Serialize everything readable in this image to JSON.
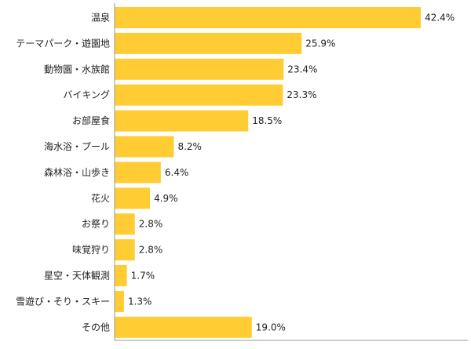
{
  "chart_data": {
    "type": "bar",
    "orientation": "horizontal",
    "title": "",
    "xlabel": "",
    "ylabel": "",
    "value_suffix": "%",
    "xlim": [
      0,
      50
    ],
    "grid": false,
    "legend": "none",
    "bar_color": "#FFCC33",
    "axis_color": "#999999",
    "text_color": "#222222",
    "categories": [
      "温泉",
      "テーマパーク・遊園地",
      "動物園・水族館",
      "バイキング",
      "お部屋食",
      "海水浴・プール",
      "森林浴・山歩き",
      "花火",
      "お祭り",
      "味覚狩り",
      "星空・天体観測",
      "雪遊び・そり・スキー",
      "その他"
    ],
    "values": [
      42.4,
      25.9,
      23.4,
      23.3,
      18.5,
      8.2,
      6.4,
      4.9,
      2.8,
      2.8,
      1.7,
      1.3,
      19.0
    ],
    "value_labels": [
      "42.4%",
      "25.9%",
      "23.4%",
      "23.3%",
      "18.5%",
      "8.2%",
      "6.4%",
      "4.9%",
      "2.8%",
      "2.8%",
      "1.7%",
      "1.3%",
      "19.0%"
    ]
  }
}
